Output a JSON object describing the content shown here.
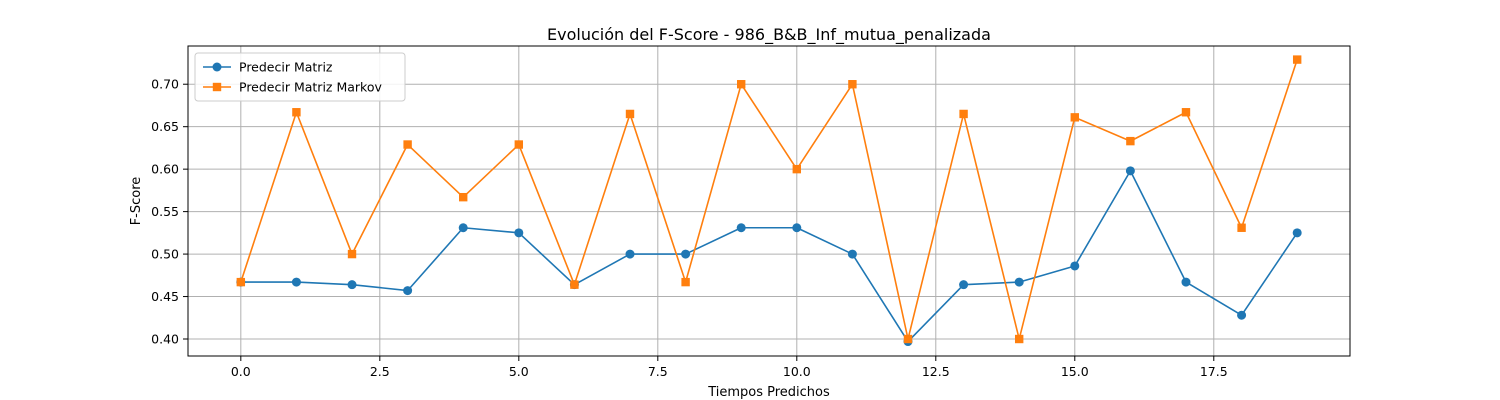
{
  "chart_data": {
    "type": "line",
    "title": "Evolución del F-Score - 986_B&B_Inf_mutua_penalizada",
    "xlabel": "Tiempos Predichos",
    "ylabel": "F-Score",
    "xlim": [
      -0.95,
      19.95
    ],
    "ylim": [
      0.38,
      0.745
    ],
    "xticks": [
      0.0,
      2.5,
      5.0,
      7.5,
      10.0,
      12.5,
      15.0,
      17.5
    ],
    "xtick_labels": [
      "0.0",
      "2.5",
      "5.0",
      "7.5",
      "10.0",
      "12.5",
      "15.0",
      "17.5"
    ],
    "yticks": [
      0.4,
      0.45,
      0.5,
      0.55,
      0.6,
      0.65,
      0.7
    ],
    "ytick_labels": [
      "0.40",
      "0.45",
      "0.50",
      "0.55",
      "0.60",
      "0.65",
      "0.70"
    ],
    "grid": true,
    "legend_position": "top-left",
    "x": [
      0,
      1,
      2,
      3,
      4,
      5,
      6,
      7,
      8,
      9,
      10,
      11,
      12,
      13,
      14,
      15,
      16,
      17,
      18,
      19
    ],
    "series": [
      {
        "name": "Predecir Matriz",
        "color": "#1f77b4",
        "marker": "circle",
        "values": [
          0.467,
          0.467,
          0.464,
          0.457,
          0.531,
          0.525,
          0.464,
          0.5,
          0.5,
          0.531,
          0.531,
          0.5,
          0.397,
          0.464,
          0.467,
          0.486,
          0.598,
          0.467,
          0.428,
          0.525
        ]
      },
      {
        "name": "Predecir Matriz Markov",
        "color": "#ff7f0e",
        "marker": "square",
        "values": [
          0.467,
          0.667,
          0.5,
          0.629,
          0.567,
          0.629,
          0.464,
          0.665,
          0.467,
          0.7,
          0.6,
          0.7,
          0.4,
          0.665,
          0.4,
          0.661,
          0.633,
          0.667,
          0.531,
          0.729
        ]
      }
    ]
  }
}
